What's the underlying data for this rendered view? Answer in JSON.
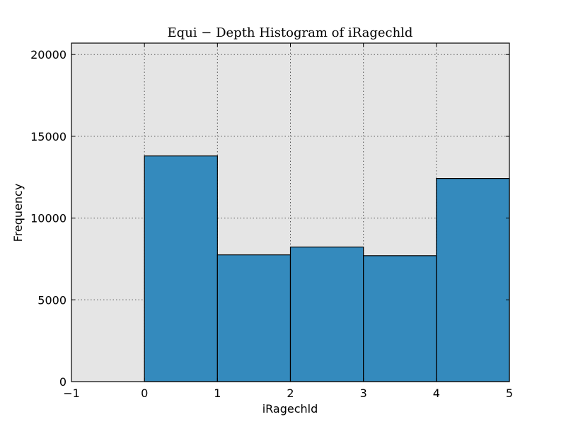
{
  "chart_data": {
    "type": "bar",
    "title": "Equi − Depth Histogram of iRagechld",
    "xlabel": "iRagechld",
    "ylabel": "Frequency",
    "xlim": [
      -1,
      5
    ],
    "ylim": [
      0,
      20700
    ],
    "x_ticks": [
      -1,
      0,
      1,
      2,
      3,
      4,
      5
    ],
    "x_tick_labels": [
      "−1",
      "0",
      "1",
      "2",
      "3",
      "4",
      "5"
    ],
    "y_ticks": [
      0,
      5000,
      10000,
      15000,
      20000
    ],
    "y_tick_labels": [
      "0",
      "5000",
      "10000",
      "15000",
      "20000"
    ],
    "bins": [
      {
        "start": 0,
        "end": 1,
        "value": 13800
      },
      {
        "start": 1,
        "end": 2,
        "value": 7750
      },
      {
        "start": 2,
        "end": 3,
        "value": 8230
      },
      {
        "start": 3,
        "end": 4,
        "value": 7700
      },
      {
        "start": 4,
        "end": 5,
        "value": 12420
      }
    ],
    "grid": true,
    "colors": {
      "bar": "#348abd",
      "plot_background": "#e5e5e5",
      "page_background": "#ffffff"
    }
  }
}
